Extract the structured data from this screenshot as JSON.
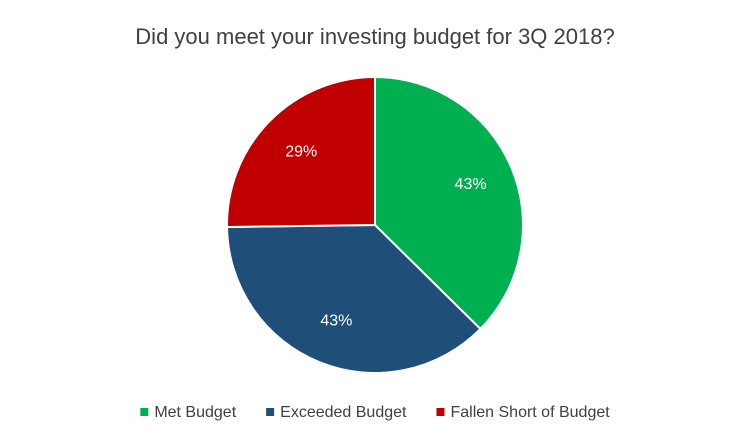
{
  "chart_data": {
    "type": "pie",
    "title": "Did you meet your investing budget for 3Q 2018?",
    "categories": [
      "Met Budget",
      "Exceeded Budget",
      "Fallen Short of Budget"
    ],
    "values": [
      43,
      43,
      29
    ],
    "value_labels": [
      "43%",
      "43%",
      "29%"
    ],
    "colors": [
      "#00b050",
      "#1f4e79",
      "#c00000"
    ],
    "legend": "bottom"
  }
}
